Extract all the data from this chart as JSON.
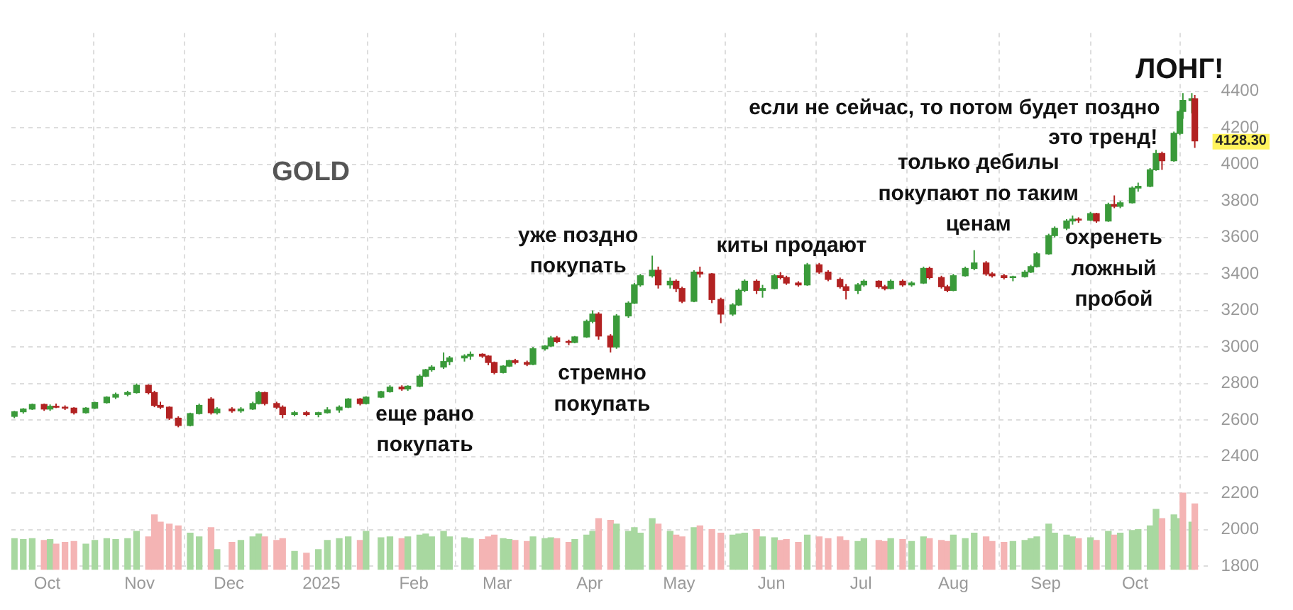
{
  "chart_data": {
    "type": "candlestick",
    "title": "GOLD",
    "x": [
      "2024-09-20",
      "2024-09-23",
      "2024-09-26",
      "2024-09-30",
      "2024-10-02",
      "2024-10-04",
      "2024-10-07",
      "2024-10-10",
      "2024-10-14",
      "2024-10-17",
      "2024-10-21",
      "2024-10-24",
      "2024-10-28",
      "2024-10-31",
      "2024-11-04",
      "2024-11-06",
      "2024-11-08",
      "2024-11-11",
      "2024-11-14",
      "2024-11-18",
      "2024-11-21",
      "2024-11-25",
      "2024-11-27",
      "2024-12-02",
      "2024-12-05",
      "2024-12-09",
      "2024-12-11",
      "2024-12-13",
      "2024-12-17",
      "2024-12-19",
      "2024-12-23",
      "2024-12-27",
      "2024-12-31",
      "2025-01-03",
      "2025-01-07",
      "2025-01-10",
      "2025-01-14",
      "2025-01-16",
      "2025-01-21",
      "2025-01-24",
      "2025-01-28",
      "2025-01-30",
      "2025-02-03",
      "2025-02-05",
      "2025-02-07",
      "2025-02-11",
      "2025-02-13",
      "2025-02-18",
      "2025-02-20",
      "2025-02-24",
      "2025-02-26",
      "2025-02-28",
      "2025-03-03",
      "2025-03-05",
      "2025-03-07",
      "2025-03-11",
      "2025-03-13",
      "2025-03-17",
      "2025-03-19",
      "2025-03-21",
      "2025-03-25",
      "2025-03-27",
      "2025-03-31",
      "2025-04-02",
      "2025-04-04",
      "2025-04-08",
      "2025-04-10",
      "2025-04-14",
      "2025-04-16",
      "2025-04-18",
      "2025-04-22",
      "2025-04-24",
      "2025-04-28",
      "2025-04-30",
      "2025-05-02",
      "2025-05-06",
      "2025-05-08",
      "2025-05-12",
      "2025-05-15",
      "2025-05-19",
      "2025-05-21",
      "2025-05-23",
      "2025-05-27",
      "2025-05-29",
      "2025-06-02",
      "2025-06-04",
      "2025-06-06",
      "2025-06-10",
      "2025-06-13",
      "2025-06-17",
      "2025-06-20",
      "2025-06-24",
      "2025-06-26",
      "2025-06-30",
      "2025-07-02",
      "2025-07-07",
      "2025-07-09",
      "2025-07-11",
      "2025-07-15",
      "2025-07-18",
      "2025-07-22",
      "2025-07-24",
      "2025-07-28",
      "2025-07-30",
      "2025-08-01",
      "2025-08-05",
      "2025-08-08",
      "2025-08-12",
      "2025-08-14",
      "2025-08-18",
      "2025-08-21",
      "2025-08-25",
      "2025-08-27",
      "2025-08-29",
      "2025-09-02",
      "2025-09-04",
      "2025-09-08",
      "2025-09-10",
      "2025-09-12",
      "2025-09-16",
      "2025-09-18",
      "2025-09-22",
      "2025-09-24",
      "2025-09-26",
      "2025-09-30",
      "2025-10-02",
      "2025-10-06",
      "2025-10-08",
      "2025-10-10",
      "2025-10-14",
      "2025-10-16",
      "2025-10-17",
      "2025-10-20",
      "2025-10-21"
    ],
    "ohlc": [
      [
        2620,
        2650,
        2610,
        2645
      ],
      [
        2645,
        2665,
        2635,
        2660
      ],
      [
        2660,
        2690,
        2655,
        2685
      ],
      [
        2685,
        2690,
        2650,
        2660
      ],
      [
        2660,
        2685,
        2650,
        2675
      ],
      [
        2675,
        2690,
        2665,
        2670
      ],
      [
        2670,
        2680,
        2655,
        2665
      ],
      [
        2665,
        2670,
        2630,
        2640
      ],
      [
        2640,
        2670,
        2635,
        2665
      ],
      [
        2665,
        2700,
        2660,
        2695
      ],
      [
        2695,
        2730,
        2690,
        2725
      ],
      [
        2725,
        2750,
        2715,
        2740
      ],
      [
        2740,
        2760,
        2730,
        2750
      ],
      [
        2750,
        2800,
        2745,
        2790
      ],
      [
        2790,
        2795,
        2740,
        2750
      ],
      [
        2750,
        2760,
        2670,
        2680
      ],
      [
        2680,
        2700,
        2660,
        2670
      ],
      [
        2670,
        2675,
        2600,
        2610
      ],
      [
        2610,
        2620,
        2560,
        2570
      ],
      [
        2570,
        2640,
        2565,
        2635
      ],
      [
        2635,
        2690,
        2630,
        2680
      ],
      [
        2715,
        2725,
        2630,
        2640
      ],
      [
        2640,
        2670,
        2630,
        2660
      ],
      [
        2660,
        2670,
        2640,
        2650
      ],
      [
        2650,
        2670,
        2640,
        2660
      ],
      [
        2660,
        2700,
        2655,
        2690
      ],
      [
        2690,
        2760,
        2685,
        2750
      ],
      [
        2750,
        2755,
        2680,
        2690
      ],
      [
        2690,
        2700,
        2660,
        2670
      ],
      [
        2670,
        2680,
        2610,
        2630
      ],
      [
        2630,
        2650,
        2620,
        2640
      ],
      [
        2640,
        2650,
        2620,
        2630
      ],
      [
        2630,
        2645,
        2615,
        2640
      ],
      [
        2640,
        2670,
        2635,
        2655
      ],
      [
        2655,
        2680,
        2640,
        2670
      ],
      [
        2670,
        2720,
        2665,
        2715
      ],
      [
        2715,
        2720,
        2680,
        2690
      ],
      [
        2690,
        2730,
        2685,
        2725
      ],
      [
        2725,
        2760,
        2720,
        2755
      ],
      [
        2755,
        2790,
        2750,
        2780
      ],
      [
        2780,
        2790,
        2760,
        2770
      ],
      [
        2770,
        2790,
        2760,
        2785
      ],
      [
        2785,
        2850,
        2780,
        2840
      ],
      [
        2840,
        2880,
        2835,
        2875
      ],
      [
        2875,
        2900,
        2865,
        2890
      ],
      [
        2890,
        2970,
        2880,
        2920
      ],
      [
        2920,
        2950,
        2900,
        2940
      ],
      [
        2940,
        2960,
        2920,
        2950
      ],
      [
        2950,
        2975,
        2930,
        2960
      ],
      [
        2960,
        2965,
        2940,
        2950
      ],
      [
        2950,
        2955,
        2900,
        2915
      ],
      [
        2915,
        2920,
        2850,
        2860
      ],
      [
        2860,
        2900,
        2855,
        2895
      ],
      [
        2895,
        2930,
        2890,
        2925
      ],
      [
        2925,
        2935,
        2905,
        2915
      ],
      [
        2915,
        2925,
        2895,
        2905
      ],
      [
        2905,
        3000,
        2900,
        2990
      ],
      [
        2990,
        3010,
        2980,
        3005
      ],
      [
        3005,
        3060,
        3000,
        3050
      ],
      [
        3050,
        3060,
        3020,
        3030
      ],
      [
        3030,
        3040,
        3010,
        3025
      ],
      [
        3025,
        3060,
        3020,
        3055
      ],
      [
        3055,
        3150,
        3050,
        3140
      ],
      [
        3140,
        3200,
        3130,
        3180
      ],
      [
        3180,
        3190,
        3040,
        3060
      ],
      [
        3060,
        3070,
        2970,
        3000
      ],
      [
        3000,
        3180,
        2990,
        3170
      ],
      [
        3170,
        3250,
        3160,
        3240
      ],
      [
        3240,
        3350,
        3235,
        3340
      ],
      [
        3340,
        3400,
        3330,
        3390
      ],
      [
        3390,
        3500,
        3380,
        3420
      ],
      [
        3420,
        3440,
        3320,
        3340
      ],
      [
        3340,
        3380,
        3320,
        3360
      ],
      [
        3360,
        3370,
        3300,
        3320
      ],
      [
        3320,
        3330,
        3240,
        3250
      ],
      [
        3250,
        3420,
        3245,
        3410
      ],
      [
        3410,
        3440,
        3380,
        3400
      ],
      [
        3400,
        3405,
        3240,
        3260
      ],
      [
        3260,
        3270,
        3130,
        3180
      ],
      [
        3180,
        3240,
        3170,
        3230
      ],
      [
        3230,
        3320,
        3225,
        3310
      ],
      [
        3310,
        3370,
        3300,
        3360
      ],
      [
        3360,
        3370,
        3290,
        3310
      ],
      [
        3310,
        3340,
        3270,
        3320
      ],
      [
        3320,
        3400,
        3315,
        3390
      ],
      [
        3390,
        3410,
        3370,
        3380
      ],
      [
        3380,
        3390,
        3340,
        3350
      ],
      [
        3350,
        3360,
        3330,
        3340
      ],
      [
        3340,
        3460,
        3335,
        3450
      ],
      [
        3450,
        3460,
        3400,
        3410
      ],
      [
        3410,
        3420,
        3360,
        3370
      ],
      [
        3370,
        3380,
        3320,
        3330
      ],
      [
        3330,
        3345,
        3260,
        3310
      ],
      [
        3310,
        3350,
        3290,
        3340
      ],
      [
        3340,
        3370,
        3330,
        3360
      ],
      [
        3360,
        3365,
        3320,
        3330
      ],
      [
        3330,
        3340,
        3310,
        3320
      ],
      [
        3320,
        3370,
        3315,
        3360
      ],
      [
        3360,
        3370,
        3330,
        3340
      ],
      [
        3340,
        3360,
        3330,
        3350
      ],
      [
        3350,
        3440,
        3345,
        3430
      ],
      [
        3430,
        3440,
        3370,
        3380
      ],
      [
        3380,
        3390,
        3320,
        3330
      ],
      [
        3330,
        3340,
        3300,
        3310
      ],
      [
        3310,
        3400,
        3305,
        3390
      ],
      [
        3390,
        3440,
        3385,
        3430
      ],
      [
        3430,
        3530,
        3420,
        3460
      ],
      [
        3460,
        3470,
        3390,
        3400
      ],
      [
        3400,
        3410,
        3380,
        3390
      ],
      [
        3390,
        3400,
        3370,
        3380
      ],
      [
        3380,
        3390,
        3360,
        3385
      ],
      [
        3385,
        3420,
        3380,
        3410
      ],
      [
        3410,
        3450,
        3405,
        3440
      ],
      [
        3440,
        3520,
        3435,
        3510
      ],
      [
        3510,
        3620,
        3505,
        3610
      ],
      [
        3610,
        3660,
        3600,
        3650
      ],
      [
        3650,
        3700,
        3640,
        3690
      ],
      [
        3690,
        3720,
        3670,
        3700
      ],
      [
        3700,
        3710,
        3680,
        3695
      ],
      [
        3695,
        3740,
        3690,
        3730
      ],
      [
        3730,
        3735,
        3680,
        3690
      ],
      [
        3690,
        3790,
        3685,
        3780
      ],
      [
        3780,
        3830,
        3760,
        3770
      ],
      [
        3770,
        3800,
        3760,
        3790
      ],
      [
        3790,
        3880,
        3785,
        3870
      ],
      [
        3870,
        3900,
        3850,
        3880
      ],
      [
        3880,
        3980,
        3875,
        3970
      ],
      [
        3970,
        4080,
        3965,
        4060
      ],
      [
        4060,
        4070,
        3970,
        4020
      ],
      [
        4020,
        4180,
        4015,
        4170
      ],
      [
        4170,
        4300,
        4160,
        4290
      ],
      [
        4290,
        4390,
        4250,
        4350
      ],
      [
        4350,
        4390,
        4280,
        4360
      ],
      [
        4360,
        4380,
        4090,
        4128.3
      ]
    ],
    "colors": [
      "#3a9a3a",
      "#3a9a3a",
      "#3a9a3a",
      "#b22222",
      "#3a9a3a",
      "#b22222",
      "#b22222",
      "#b22222",
      "#3a9a3a",
      "#3a9a3a",
      "#3a9a3a",
      "#3a9a3a",
      "#3a9a3a",
      "#3a9a3a",
      "#b22222",
      "#b22222",
      "#b22222",
      "#b22222",
      "#b22222",
      "#3a9a3a",
      "#3a9a3a",
      "#b22222",
      "#3a9a3a",
      "#b22222",
      "#3a9a3a",
      "#3a9a3a",
      "#3a9a3a",
      "#b22222",
      "#b22222",
      "#b22222",
      "#3a9a3a",
      "#b22222",
      "#3a9a3a",
      "#3a9a3a",
      "#3a9a3a",
      "#3a9a3a",
      "#b22222",
      "#3a9a3a",
      "#3a9a3a",
      "#3a9a3a",
      "#b22222",
      "#3a9a3a",
      "#3a9a3a",
      "#3a9a3a",
      "#3a9a3a",
      "#3a9a3a",
      "#3a9a3a",
      "#3a9a3a",
      "#3a9a3a",
      "#b22222",
      "#b22222",
      "#b22222",
      "#3a9a3a",
      "#3a9a3a",
      "#b22222",
      "#b22222",
      "#3a9a3a",
      "#3a9a3a",
      "#3a9a3a",
      "#b22222",
      "#b22222",
      "#3a9a3a",
      "#3a9a3a",
      "#3a9a3a",
      "#b22222",
      "#b22222",
      "#3a9a3a",
      "#3a9a3a",
      "#3a9a3a",
      "#3a9a3a",
      "#3a9a3a",
      "#b22222",
      "#3a9a3a",
      "#b22222",
      "#b22222",
      "#3a9a3a",
      "#b22222",
      "#b22222",
      "#b22222",
      "#3a9a3a",
      "#3a9a3a",
      "#3a9a3a",
      "#b22222",
      "#3a9a3a",
      "#3a9a3a",
      "#b22222",
      "#b22222",
      "#b22222",
      "#3a9a3a",
      "#b22222",
      "#b22222",
      "#b22222",
      "#b22222",
      "#3a9a3a",
      "#3a9a3a",
      "#b22222",
      "#b22222",
      "#3a9a3a",
      "#b22222",
      "#3a9a3a",
      "#3a9a3a",
      "#b22222",
      "#b22222",
      "#b22222",
      "#3a9a3a",
      "#3a9a3a",
      "#3a9a3a",
      "#b22222",
      "#b22222",
      "#b22222",
      "#3a9a3a",
      "#3a9a3a",
      "#3a9a3a",
      "#3a9a3a",
      "#3a9a3a",
      "#3a9a3a",
      "#3a9a3a",
      "#3a9a3a",
      "#b22222",
      "#3a9a3a",
      "#b22222",
      "#3a9a3a",
      "#b22222",
      "#3a9a3a",
      "#3a9a3a",
      "#3a9a3a",
      "#3a9a3a",
      "#3a9a3a",
      "#b22222",
      "#3a9a3a",
      "#3a9a3a",
      "#3a9a3a",
      "#3a9a3a",
      "#b22222"
    ],
    "series": [
      {
        "type": "bar",
        "values": [
          1950,
          1945,
          1950,
          1940,
          1945,
          1920,
          1930,
          1935,
          1920,
          1940,
          1950,
          1945,
          1950,
          1990,
          1960,
          2080,
          2040,
          2030,
          2020,
          1980,
          1960,
          2010,
          1890,
          1930,
          1940,
          1960,
          1975,
          1960,
          1940,
          1950,
          1880,
          1870,
          1890,
          1940,
          1950,
          1960,
          1940,
          1990,
          1955,
          1960,
          1950,
          1960,
          1970,
          1975,
          1960,
          1990,
          1960,
          1955,
          1950,
          1945,
          1960,
          1970,
          1950,
          1945,
          1940,
          1935,
          1960,
          1950,
          1955,
          1950,
          1930,
          1945,
          1970,
          1990,
          2060,
          2050,
          2030,
          1990,
          2010,
          1980,
          2060,
          2030,
          1990,
          1970,
          1960,
          2010,
          2020,
          2000,
          1980,
          1970,
          1975,
          1980,
          2000,
          1960,
          1955,
          1940,
          1945,
          1930,
          1970,
          1960,
          1950,
          1960,
          1940,
          1935,
          1950,
          1940,
          1935,
          1950,
          1945,
          1935,
          1960,
          1950,
          1940,
          1935,
          1970,
          1950,
          1980,
          1960,
          1935,
          1930,
          1935,
          1940,
          1950,
          1960,
          2030,
          1980,
          1970,
          1960,
          1950,
          1955,
          1940,
          1990,
          1970,
          1980,
          1995,
          2000,
          2020,
          2110,
          2060,
          2080,
          2060,
          2200,
          2040,
          2140
        ],
        "colors": [
          "#a8d8a0",
          "#a8d8a0",
          "#a8d8a0",
          "#f4b4b4",
          "#a8d8a0",
          "#f4b4b4",
          "#f4b4b4",
          "#f4b4b4",
          "#a8d8a0",
          "#a8d8a0",
          "#a8d8a0",
          "#a8d8a0",
          "#a8d8a0",
          "#a8d8a0",
          "#f4b4b4",
          "#f4b4b4",
          "#f4b4b4",
          "#f4b4b4",
          "#f4b4b4",
          "#a8d8a0",
          "#a8d8a0",
          "#f4b4b4",
          "#a8d8a0",
          "#f4b4b4",
          "#a8d8a0",
          "#a8d8a0",
          "#a8d8a0",
          "#f4b4b4",
          "#f4b4b4",
          "#f4b4b4",
          "#a8d8a0",
          "#f4b4b4",
          "#a8d8a0",
          "#a8d8a0",
          "#a8d8a0",
          "#a8d8a0",
          "#f4b4b4",
          "#a8d8a0",
          "#a8d8a0",
          "#a8d8a0",
          "#f4b4b4",
          "#a8d8a0",
          "#a8d8a0",
          "#a8d8a0",
          "#a8d8a0",
          "#a8d8a0",
          "#a8d8a0",
          "#a8d8a0",
          "#a8d8a0",
          "#f4b4b4",
          "#f4b4b4",
          "#f4b4b4",
          "#a8d8a0",
          "#a8d8a0",
          "#f4b4b4",
          "#f4b4b4",
          "#a8d8a0",
          "#a8d8a0",
          "#a8d8a0",
          "#f4b4b4",
          "#f4b4b4",
          "#a8d8a0",
          "#a8d8a0",
          "#a8d8a0",
          "#f4b4b4",
          "#f4b4b4",
          "#a8d8a0",
          "#a8d8a0",
          "#a8d8a0",
          "#a8d8a0",
          "#a8d8a0",
          "#f4b4b4",
          "#a8d8a0",
          "#f4b4b4",
          "#f4b4b4",
          "#a8d8a0",
          "#f4b4b4",
          "#f4b4b4",
          "#f4b4b4",
          "#a8d8a0",
          "#a8d8a0",
          "#a8d8a0",
          "#f4b4b4",
          "#a8d8a0",
          "#a8d8a0",
          "#f4b4b4",
          "#f4b4b4",
          "#f4b4b4",
          "#a8d8a0",
          "#f4b4b4",
          "#f4b4b4",
          "#f4b4b4",
          "#f4b4b4",
          "#a8d8a0",
          "#a8d8a0",
          "#f4b4b4",
          "#f4b4b4",
          "#a8d8a0",
          "#f4b4b4",
          "#a8d8a0",
          "#a8d8a0",
          "#f4b4b4",
          "#f4b4b4",
          "#f4b4b4",
          "#a8d8a0",
          "#a8d8a0",
          "#a8d8a0",
          "#f4b4b4",
          "#f4b4b4",
          "#f4b4b4",
          "#a8d8a0",
          "#a8d8a0",
          "#a8d8a0",
          "#a8d8a0",
          "#a8d8a0",
          "#a8d8a0",
          "#a8d8a0",
          "#a8d8a0",
          "#f4b4b4",
          "#a8d8a0",
          "#f4b4b4",
          "#a8d8a0",
          "#f4b4b4",
          "#a8d8a0",
          "#a8d8a0",
          "#a8d8a0",
          "#a8d8a0",
          "#a8d8a0",
          "#f4b4b4",
          "#a8d8a0",
          "#a8d8a0",
          "#f4b4b4",
          "#a8d8a0",
          "#f4b4b4"
        ]
      }
    ],
    "xlim": [
      "2024-09-19",
      "2025-10-26"
    ],
    "xticks": [
      {
        "value": "2024-10-01",
        "label": "Oct"
      },
      {
        "value": "2024-11-01",
        "label": "Nov"
      },
      {
        "value": "2024-12-01",
        "label": "Dec"
      },
      {
        "value": "2025-01-01",
        "label": "2025"
      },
      {
        "value": "2025-02-01",
        "label": "Feb"
      },
      {
        "value": "2025-03-01",
        "label": "Mar"
      },
      {
        "value": "2025-04-01",
        "label": "Apr"
      },
      {
        "value": "2025-05-01",
        "label": "May"
      },
      {
        "value": "2025-06-01",
        "label": "Jun"
      },
      {
        "value": "2025-07-01",
        "label": "Jul"
      },
      {
        "value": "2025-08-01",
        "label": "Aug"
      },
      {
        "value": "2025-09-01",
        "label": "Sep"
      },
      {
        "value": "2025-10-01",
        "label": "Oct"
      }
    ],
    "ylim": [
      1780,
      4720
    ],
    "yticks": [
      1800,
      2000,
      2200,
      2400,
      2600,
      2800,
      3000,
      3200,
      3400,
      3600,
      3800,
      4000,
      4200,
      4400
    ],
    "grid": true,
    "annotations": [
      "ЛОНГ!",
      "если не сейчас, то потом будет поздно",
      "это тренд!",
      "только дебилы\nпокупают по таким\nценам",
      "охренеть\nложный\nпробой",
      "киты продают",
      "уже поздно\nпокупать",
      "стремно\nпокупать",
      "еще рано\nпокупать",
      {
        "text": "4128.30",
        "x": "2025-10-21",
        "y": 4128.3
      }
    ]
  }
}
